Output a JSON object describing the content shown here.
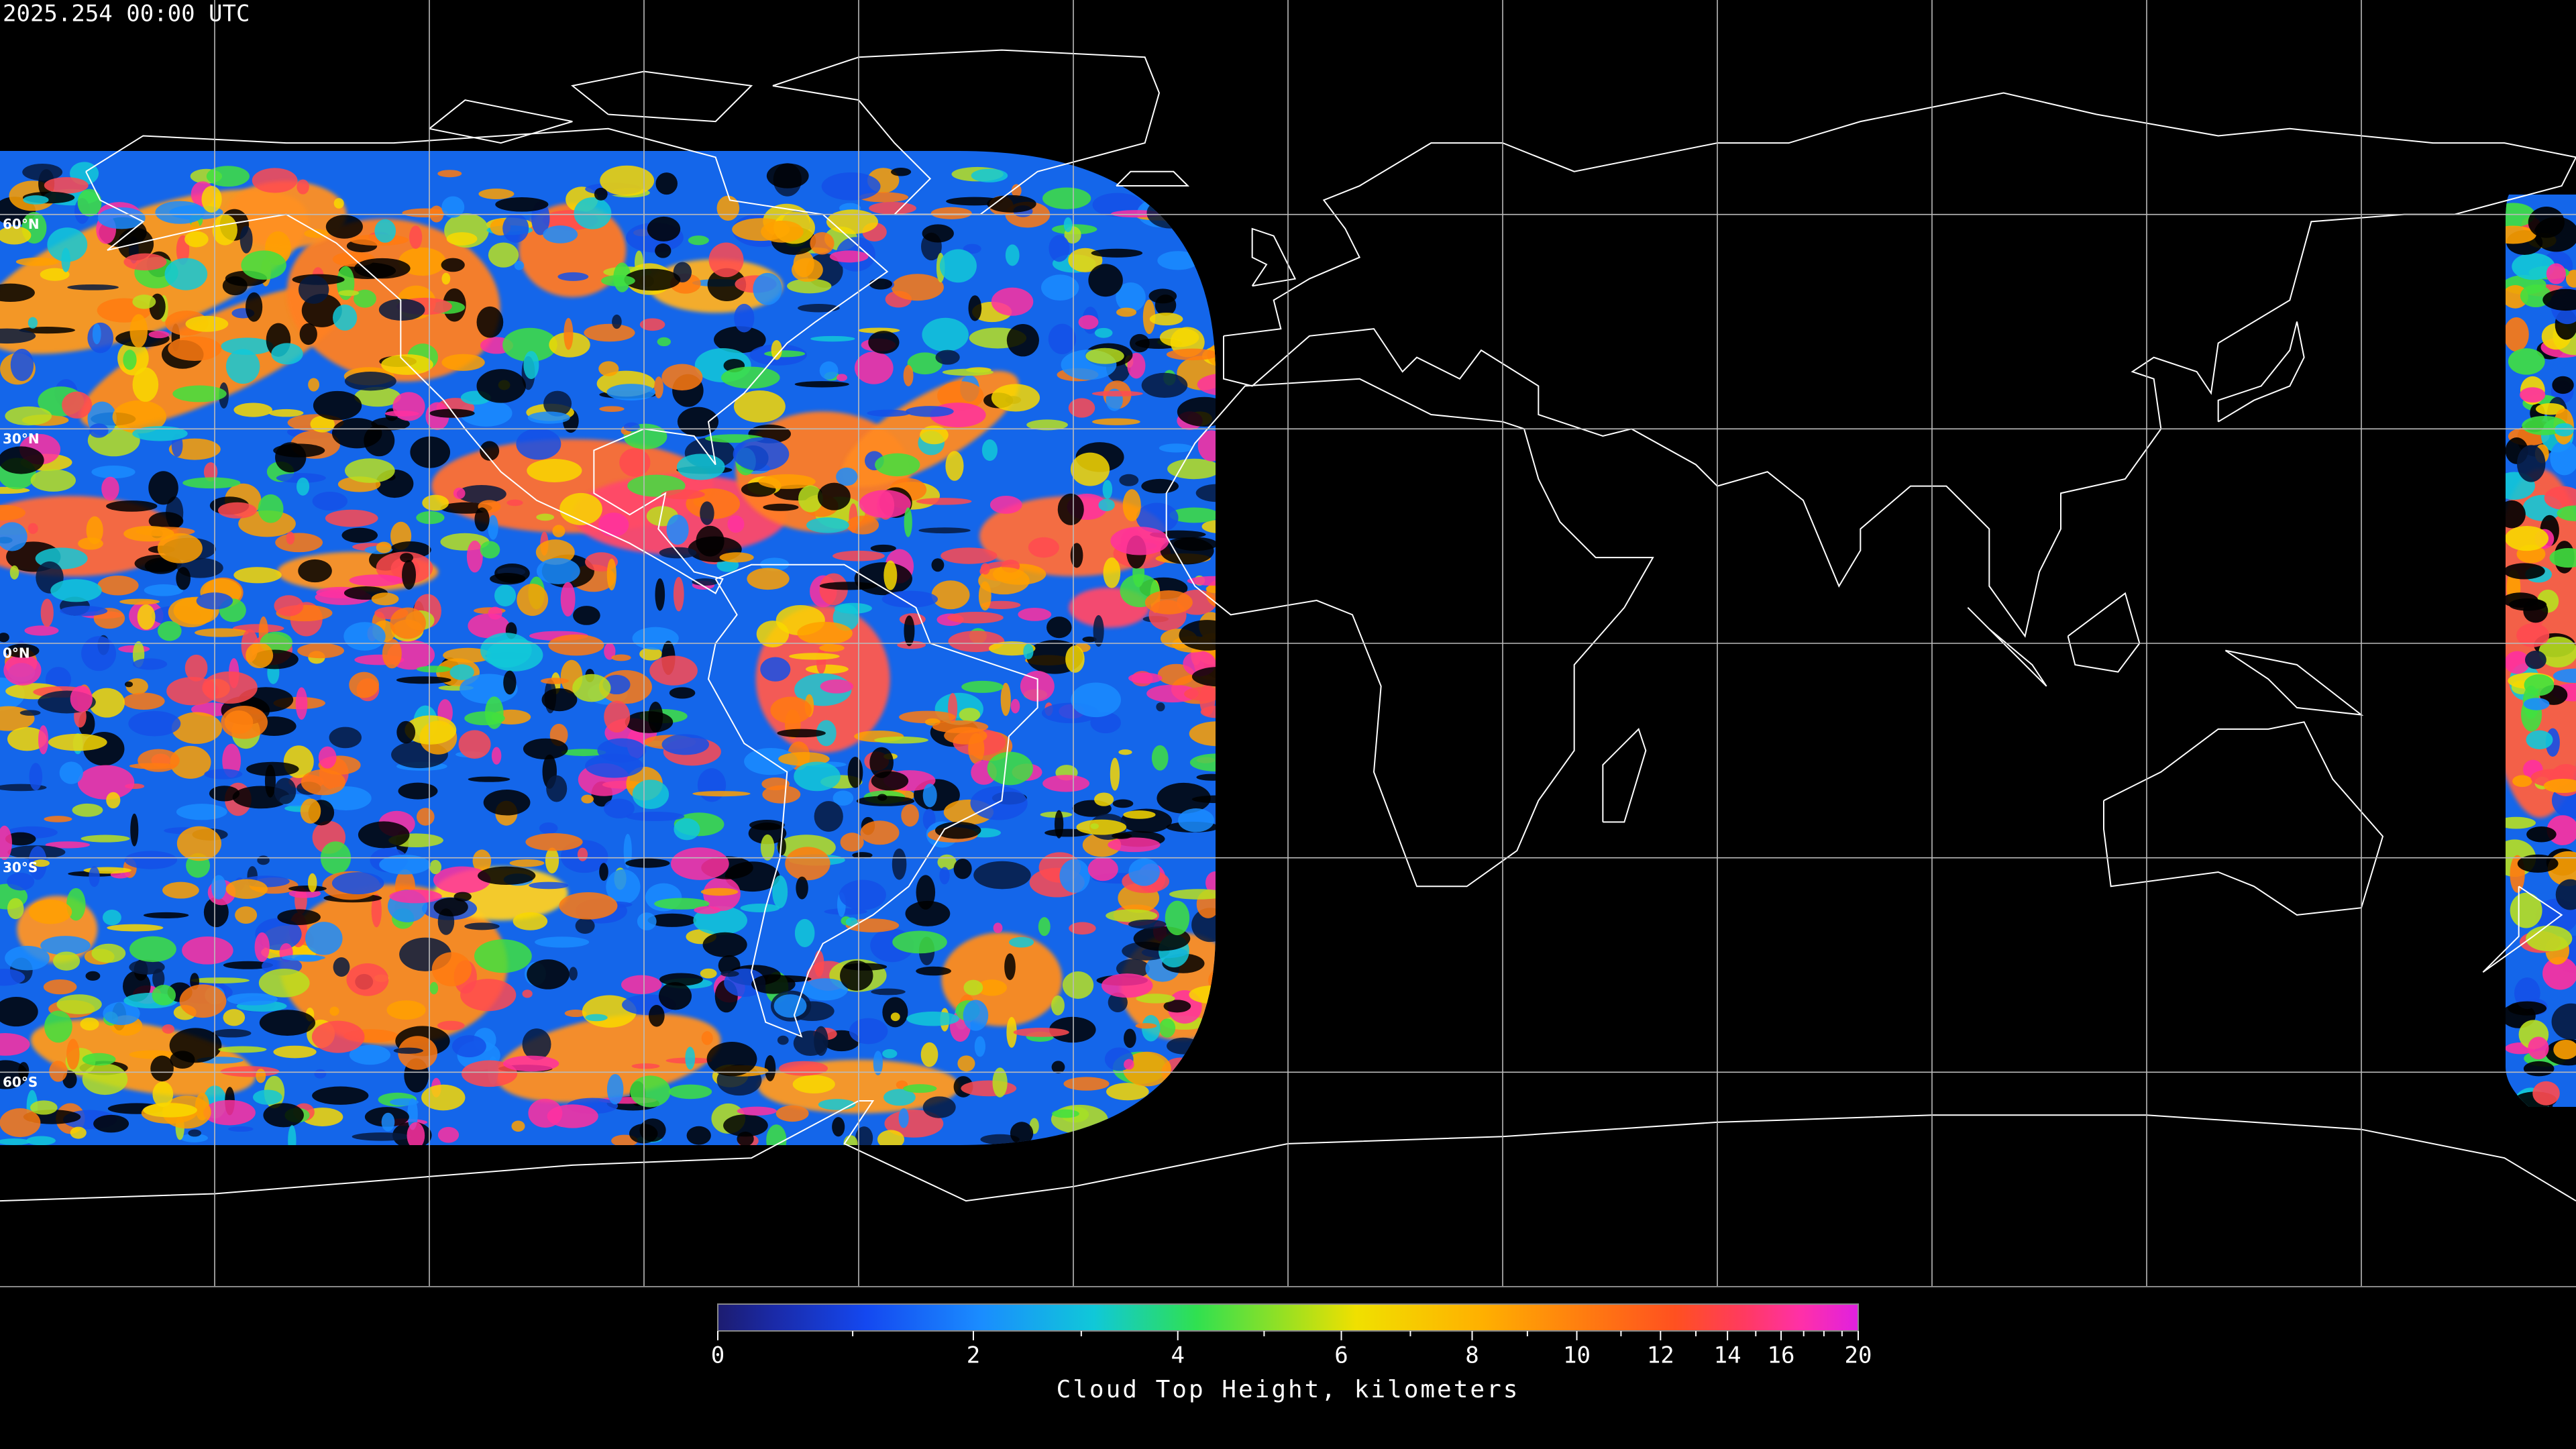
{
  "header": {
    "timestamp": "2025.254 00:00 UTC"
  },
  "map": {
    "lat_ticks": [
      {
        "value": 60,
        "label": "60°N"
      },
      {
        "value": 30,
        "label": "30°N"
      },
      {
        "value": 0,
        "label": "0°N"
      },
      {
        "value": -30,
        "label": "30°S"
      },
      {
        "value": -60,
        "label": "60°S"
      }
    ]
  },
  "colorbar": {
    "label": "Cloud Top Height, kilometers",
    "range": [
      0,
      20
    ],
    "ticks": [
      0,
      2,
      4,
      6,
      8,
      10,
      12,
      14,
      16,
      20
    ],
    "minor_ticks": [
      1,
      3,
      5,
      7,
      9,
      11,
      13,
      15,
      17,
      18,
      19
    ]
  }
}
